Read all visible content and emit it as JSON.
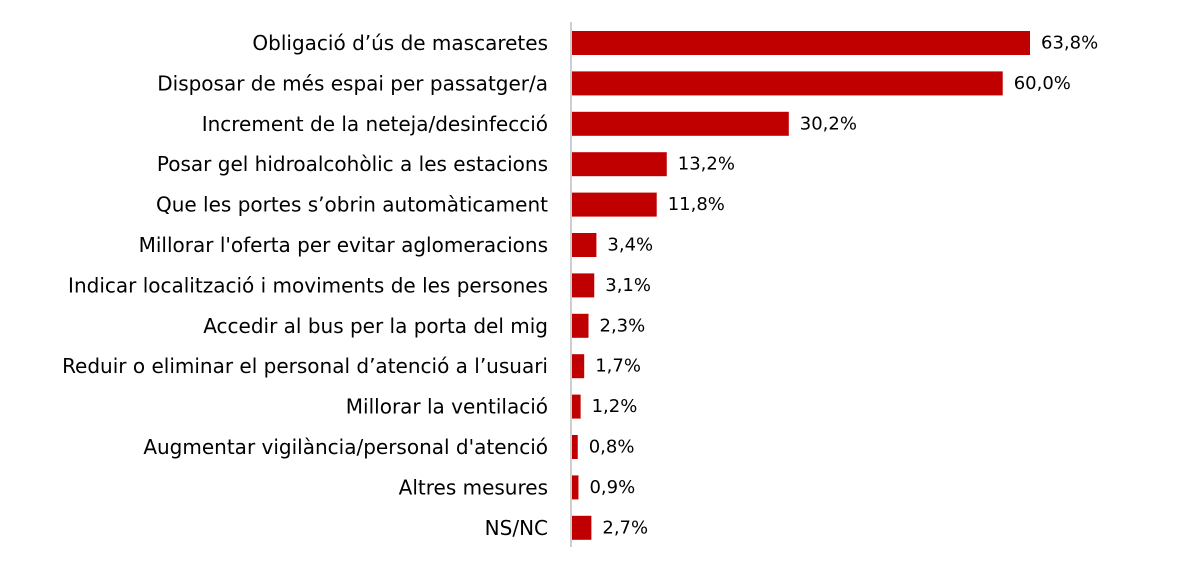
{
  "chart_data": {
    "type": "bar",
    "orientation": "horizontal",
    "categories": [
      "Obligació d’ús de mascaretes",
      "Disposar de més espai per passatger/a",
      "Increment de la neteja/desinfecció",
      "Posar gel hidroalcohòlic a les estacions",
      "Que les portes s’obrin automàticament",
      "Millorar l'oferta per evitar aglomeracions",
      "Indicar localització i moviments de les persones",
      "Accedir al bus per la porta del mig",
      "Reduir o eliminar el personal d’atenció a l’usuari",
      "Millorar la ventilació",
      "Augmentar vigilància/personal d'atenció",
      "Altres mesures",
      "NS/NC"
    ],
    "values": [
      63.8,
      60.0,
      30.2,
      13.2,
      11.8,
      3.4,
      3.1,
      2.3,
      1.7,
      1.2,
      0.8,
      0.9,
      2.7
    ],
    "value_labels": [
      "63,8%",
      "60,0%",
      "30,2%",
      "13,2%",
      "11,8%",
      "3,4%",
      "3,1%",
      "2,3%",
      "1,7%",
      "1,2%",
      "0,8%",
      "0,9%",
      "2,7%"
    ],
    "bar_color": "#c00000",
    "axis_color": "#bfbfbf",
    "xlim": [
      0,
      100
    ],
    "grid": false,
    "legend": "none",
    "title": "",
    "xlabel": "",
    "ylabel": ""
  }
}
